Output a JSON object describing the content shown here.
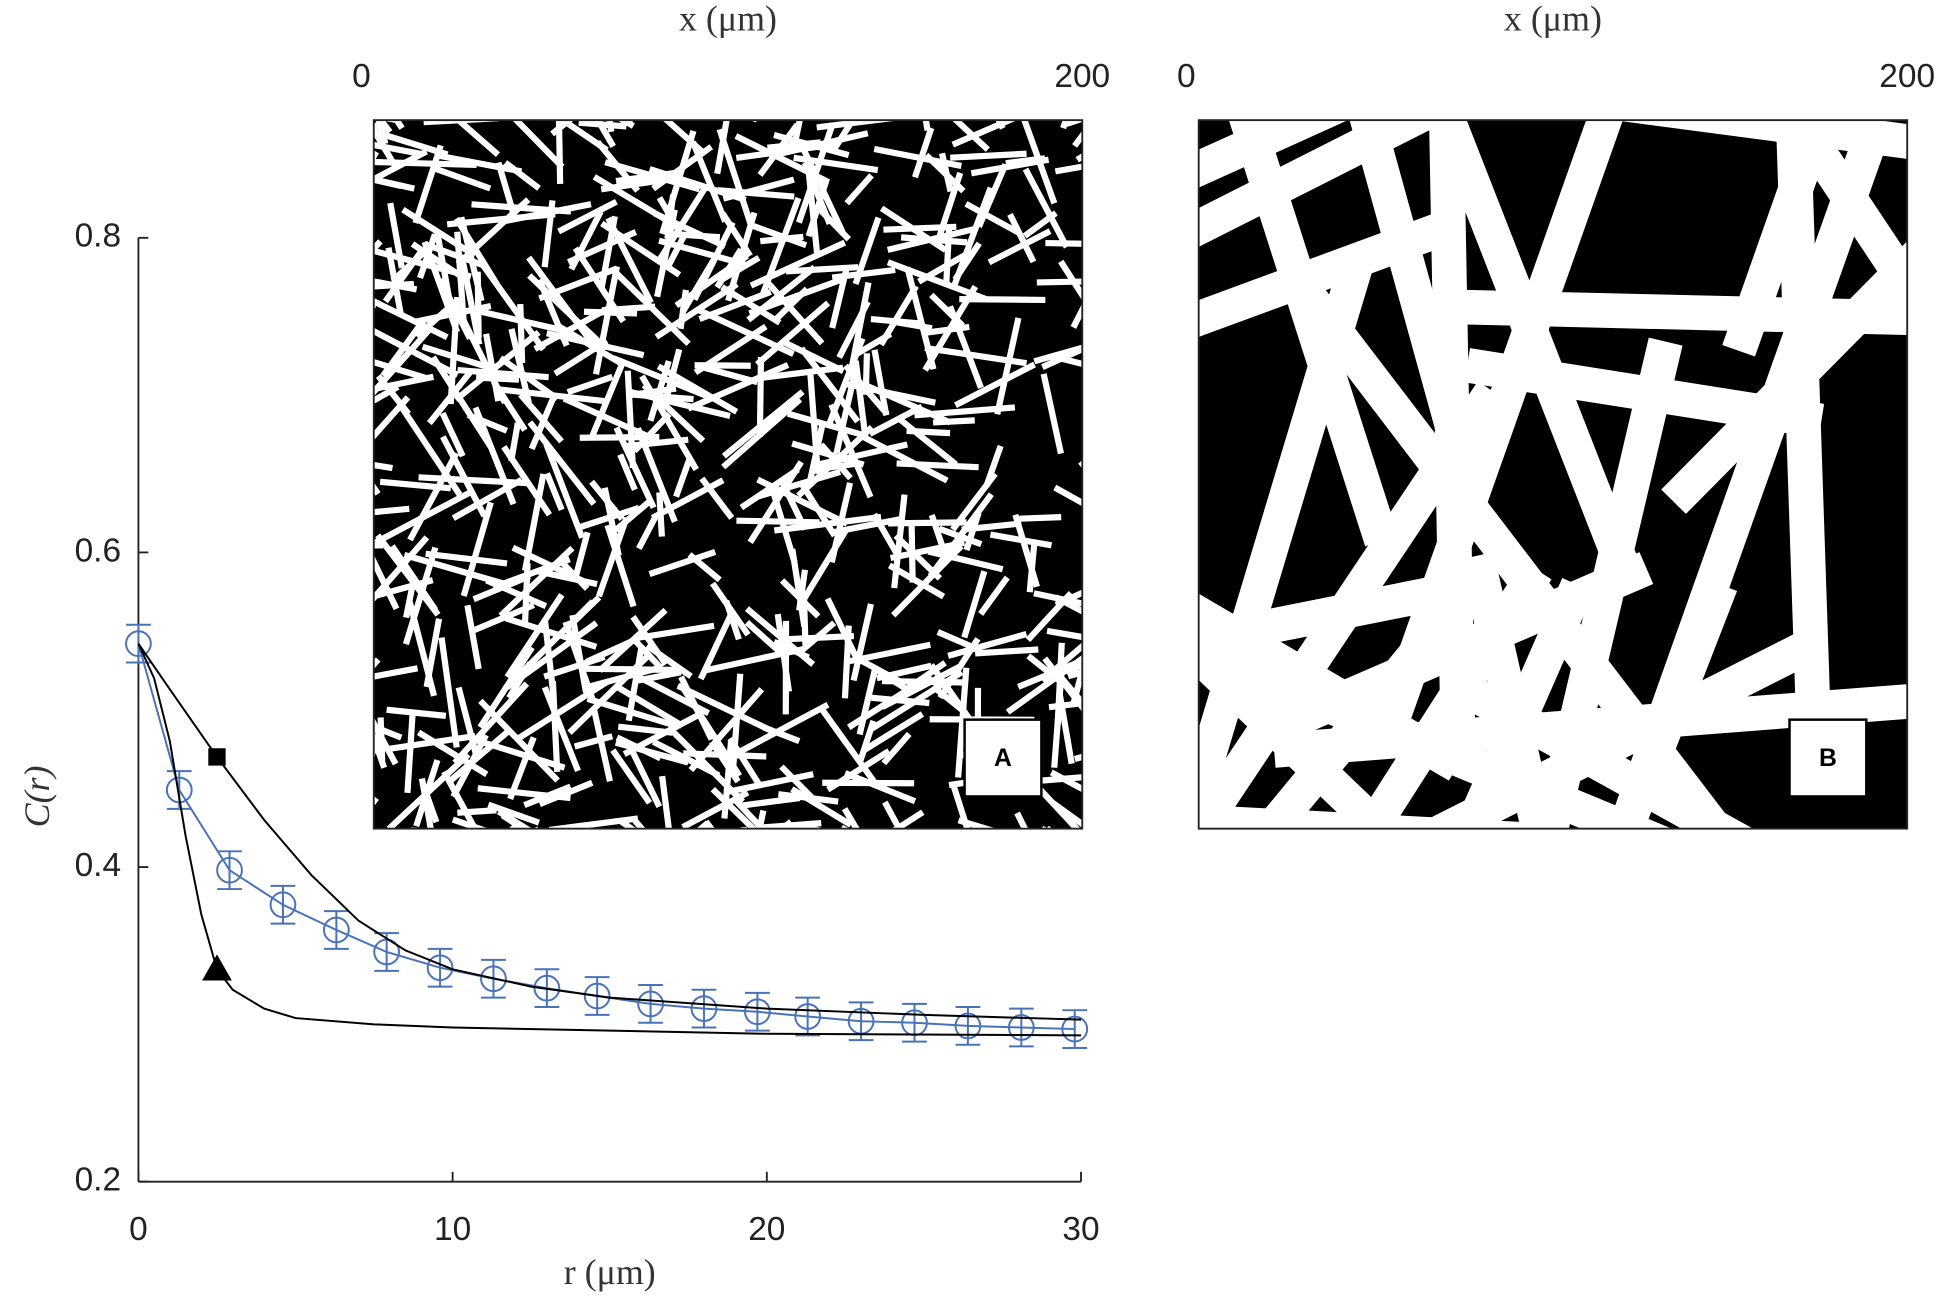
{
  "chart_data": [
    {
      "type": "line",
      "xlabel": "r (μm)",
      "ylabel": "C(r)",
      "xlim": [
        0,
        30
      ],
      "xticks": [
        0,
        10,
        20,
        30
      ],
      "ylim": [
        0.2,
        0.8
      ],
      "yticks": [
        0.2,
        0.4,
        0.6,
        0.8
      ],
      "series": [
        {
          "color": "#4a72b8",
          "marker": "circle",
          "errorbars": true,
          "x": [
            0,
            1.3,
            2.9,
            4.6,
            6.3,
            7.9,
            9.6,
            11.3,
            13.0,
            14.6,
            16.3,
            18.0,
            19.7,
            21.3,
            23.0,
            24.7,
            26.4,
            28.1,
            29.8
          ],
          "values": [
            0.542,
            0.449,
            0.398,
            0.376,
            0.36,
            0.346,
            0.336,
            0.329,
            0.323,
            0.318,
            0.313,
            0.31,
            0.308,
            0.305,
            0.302,
            0.301,
            0.299,
            0.298,
            0.297
          ],
          "errors": [
            0.012,
            0.012,
            0.012,
            0.012,
            0.012,
            0.012,
            0.012,
            0.012,
            0.012,
            0.012,
            0.012,
            0.012,
            0.012,
            0.012,
            0.012,
            0.012,
            0.012,
            0.012,
            0.012
          ]
        },
        {
          "color": "#000000",
          "x": [
            0,
            1,
            2.5,
            4,
            5.5,
            7,
            8.5,
            10,
            12.5,
            15,
            20,
            25,
            30
          ],
          "values": [
            0.542,
            0.513,
            0.47,
            0.43,
            0.395,
            0.366,
            0.347,
            0.335,
            0.324,
            0.317,
            0.31,
            0.306,
            0.303
          ]
        },
        {
          "color": "#000000",
          "x": [
            0,
            0.5,
            1,
            1.5,
            2,
            2.5,
            3,
            4,
            5,
            7.5,
            10,
            20,
            30
          ],
          "values": [
            0.542,
            0.52,
            0.48,
            0.42,
            0.37,
            0.335,
            0.322,
            0.31,
            0.304,
            0.3,
            0.298,
            0.294,
            0.293
          ]
        },
        {
          "color": "#000000",
          "marker": "square",
          "x": [
            2.5
          ],
          "values": [
            0.47
          ]
        },
        {
          "color": "#000000",
          "marker": "triangle",
          "x": [
            2.5
          ],
          "values": [
            0.335
          ]
        }
      ]
    },
    {
      "type": "image",
      "xlabel": "x (μm)",
      "xlim": [
        0,
        200
      ],
      "xticks": [
        0,
        200
      ],
      "label": "A",
      "texture": "fine"
    },
    {
      "type": "image",
      "xlabel": "x (μm)",
      "xlim": [
        0,
        200
      ],
      "xticks": [
        0,
        200
      ],
      "label": "B",
      "texture": "coarse"
    }
  ]
}
